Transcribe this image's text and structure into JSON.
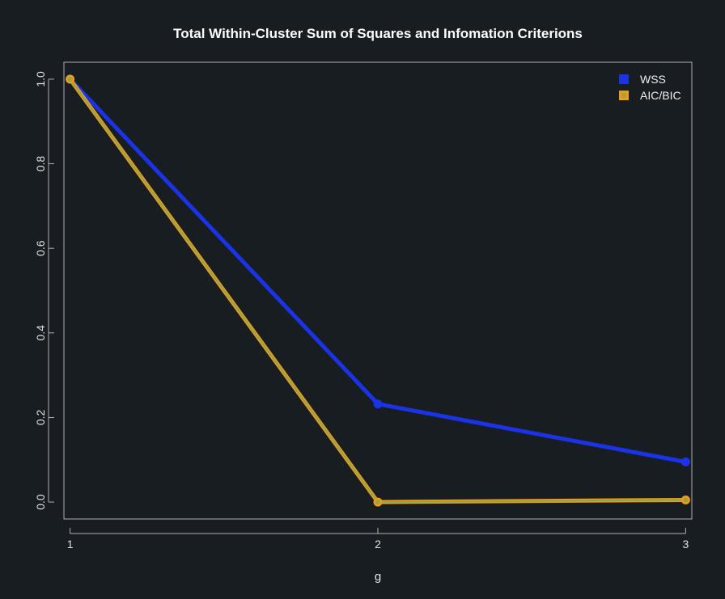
{
  "chart_data": {
    "type": "line",
    "title": "Total Within-Cluster Sum of Squares and Infomation Criterions",
    "xlabel": "g",
    "ylabel": "",
    "x": [
      1,
      2,
      3
    ],
    "x_ticks": [
      "1",
      "2",
      "3"
    ],
    "y_ticks": [
      "0.0",
      "0.2",
      "0.4",
      "0.6",
      "0.8",
      "1.0"
    ],
    "xlim": [
      0.98,
      3.02
    ],
    "ylim": [
      -0.04,
      1.04
    ],
    "grid": false,
    "legend_position": "top-right",
    "series": [
      {
        "name": "WSS",
        "color": "#1a33e6",
        "values": [
          1.0,
          0.232,
          0.095
        ]
      },
      {
        "name": "AIC/BIC",
        "color": "#f09a18",
        "values": [
          1.0,
          0.0,
          0.005
        ]
      }
    ],
    "overlay_color": "#7aaa55"
  }
}
